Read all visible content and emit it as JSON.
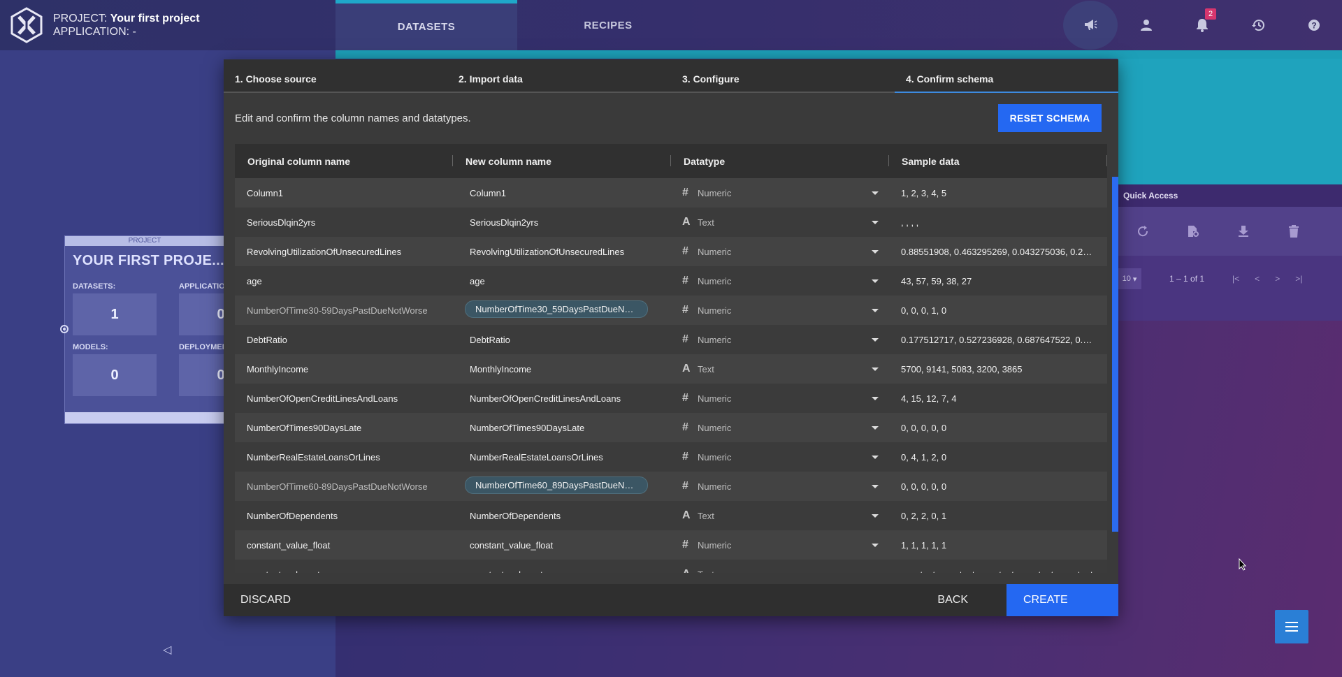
{
  "header": {
    "project_prefix": "PROJECT: ",
    "project_name": "Your first project",
    "application_label": "APPLICATION: -",
    "tabs": [
      {
        "label": "DATASETS",
        "active": true
      },
      {
        "label": "RECIPES",
        "active": false
      }
    ],
    "notifications_count": "2",
    "icons": [
      "megaphone-icon",
      "user-icon",
      "bell-icon",
      "history-icon",
      "help-icon"
    ]
  },
  "project_card": {
    "header": "PROJECT",
    "title": "YOUR FIRST PROJE...",
    "datasets_label": "DATASETS:",
    "datasets_value": "1",
    "applications_label": "APPLICATIO",
    "applications_value": "0",
    "models_label": "MODELS:",
    "models_value": "0",
    "deployments_label": "DEPLOYMEN",
    "deployments_value": "0"
  },
  "quick_access": {
    "title": "Quick Access",
    "page_size": "10",
    "range": "1 – 1 of 1"
  },
  "wizard": {
    "steps": [
      {
        "label": "1. Choose source",
        "active": false
      },
      {
        "label": "2. Import data",
        "active": false
      },
      {
        "label": "3. Configure",
        "active": false
      },
      {
        "label": "4. Confirm schema",
        "active": true
      }
    ],
    "description": "Edit and confirm the column names and datatypes.",
    "reset_label": "RESET SCHEMA",
    "columns": [
      "Original column name",
      "New column name",
      "Datatype",
      "Sample data"
    ],
    "rows": [
      {
        "original": "Column1",
        "new": "Column1",
        "dtype": "Numeric",
        "sample": "1, 2, 3, 4, 5",
        "dim": false
      },
      {
        "original": "SeriousDlqin2yrs",
        "new": "SeriousDlqin2yrs",
        "dtype": "Text",
        "sample": ", , , ,",
        "dim": false
      },
      {
        "original": "RevolvingUtilizationOfUnsecuredLines",
        "new": "RevolvingUtilizationOfUnsecuredLines",
        "dtype": "Numeric",
        "sample": "0.88551908, 0.463295269, 0.043275036, 0.2803…",
        "dim": false
      },
      {
        "original": "age",
        "new": "age",
        "dtype": "Numeric",
        "sample": "43, 57, 59, 38, 27",
        "dim": false
      },
      {
        "original": "NumberOfTime30-59DaysPastDueNotWorse",
        "new": "NumberOfTime30_59DaysPastDueNotW…",
        "dtype": "Numeric",
        "sample": "0, 0, 0, 1, 0",
        "dim": true
      },
      {
        "original": "DebtRatio",
        "new": "DebtRatio",
        "dtype": "Numeric",
        "sample": "0.177512717, 0.527236928, 0.687647522, 0.925…",
        "dim": false
      },
      {
        "original": "MonthlyIncome",
        "new": "MonthlyIncome",
        "dtype": "Text",
        "sample": "5700, 9141, 5083, 3200, 3865",
        "dim": false
      },
      {
        "original": "NumberOfOpenCreditLinesAndLoans",
        "new": "NumberOfOpenCreditLinesAndLoans",
        "dtype": "Numeric",
        "sample": "4, 15, 12, 7, 4",
        "dim": false
      },
      {
        "original": "NumberOfTimes90DaysLate",
        "new": "NumberOfTimes90DaysLate",
        "dtype": "Numeric",
        "sample": "0, 0, 0, 0, 0",
        "dim": false
      },
      {
        "original": "NumberRealEstateLoansOrLines",
        "new": "NumberRealEstateLoansOrLines",
        "dtype": "Numeric",
        "sample": "0, 4, 1, 2, 0",
        "dim": false
      },
      {
        "original": "NumberOfTime60-89DaysPastDueNotWorse",
        "new": "NumberOfTime60_89DaysPastDueNotW…",
        "dtype": "Numeric",
        "sample": "0, 0, 0, 0, 0",
        "dim": true
      },
      {
        "original": "NumberOfDependents",
        "new": "NumberOfDependents",
        "dtype": "Text",
        "sample": "0, 2, 2, 0, 1",
        "dim": false
      },
      {
        "original": "constant_value_float",
        "new": "constant_value_float",
        "dtype": "Numeric",
        "sample": "1, 1, 1, 1, 1",
        "dim": false
      },
      {
        "original": "constant_value_str",
        "new": "constant_value_str",
        "dtype": "Text",
        "sample": "constant, constant, constant, constant, constant",
        "dim": false
      }
    ],
    "discard_label": "DISCARD",
    "back_label": "BACK",
    "create_label": "CREATE"
  },
  "colors": {
    "accent": "#2468f2",
    "teal": "#1fa3bd",
    "modal_bg": "#3a3a3a"
  }
}
